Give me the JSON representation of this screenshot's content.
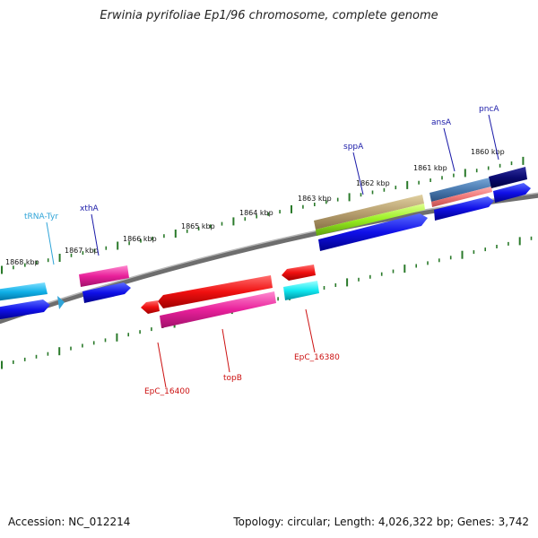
{
  "title": "Erwinia pyrifoliae Ep1/96 chromosome, complete genome",
  "footer": {
    "accession": "Accession: NC_012214",
    "summary": "Topology: circular; Length: 4,026,322 bp; Genes: 3,742"
  },
  "colors": {
    "tick": "#2a7a2a",
    "backbone": "#8a8a8a",
    "forward_label": "#1a1aa8",
    "reverse_label": "#cc1111",
    "trna_label": "#2fa4d8"
  },
  "scale_labels": [
    {
      "text": "1868 kbp"
    },
    {
      "text": "1867 kbp"
    },
    {
      "text": "1866 kbp"
    },
    {
      "text": "1865 kbp"
    },
    {
      "text": "1864 kbp"
    },
    {
      "text": "1863 kbp"
    },
    {
      "text": "1862 kbp"
    },
    {
      "text": "1861 kbp"
    },
    {
      "text": "1860 kbp"
    }
  ],
  "gene_labels": [
    {
      "text": "tRNA-Tyr",
      "strand": "forward",
      "kind": "trna"
    },
    {
      "text": "xthA",
      "strand": "forward"
    },
    {
      "text": "sppA",
      "strand": "forward"
    },
    {
      "text": "ansA",
      "strand": "forward"
    },
    {
      "text": "pncA",
      "strand": "forward"
    },
    {
      "text": "EpC_16400",
      "strand": "reverse"
    },
    {
      "text": "topB",
      "strand": "reverse"
    },
    {
      "text": "EpC_16380",
      "strand": "reverse"
    }
  ]
}
